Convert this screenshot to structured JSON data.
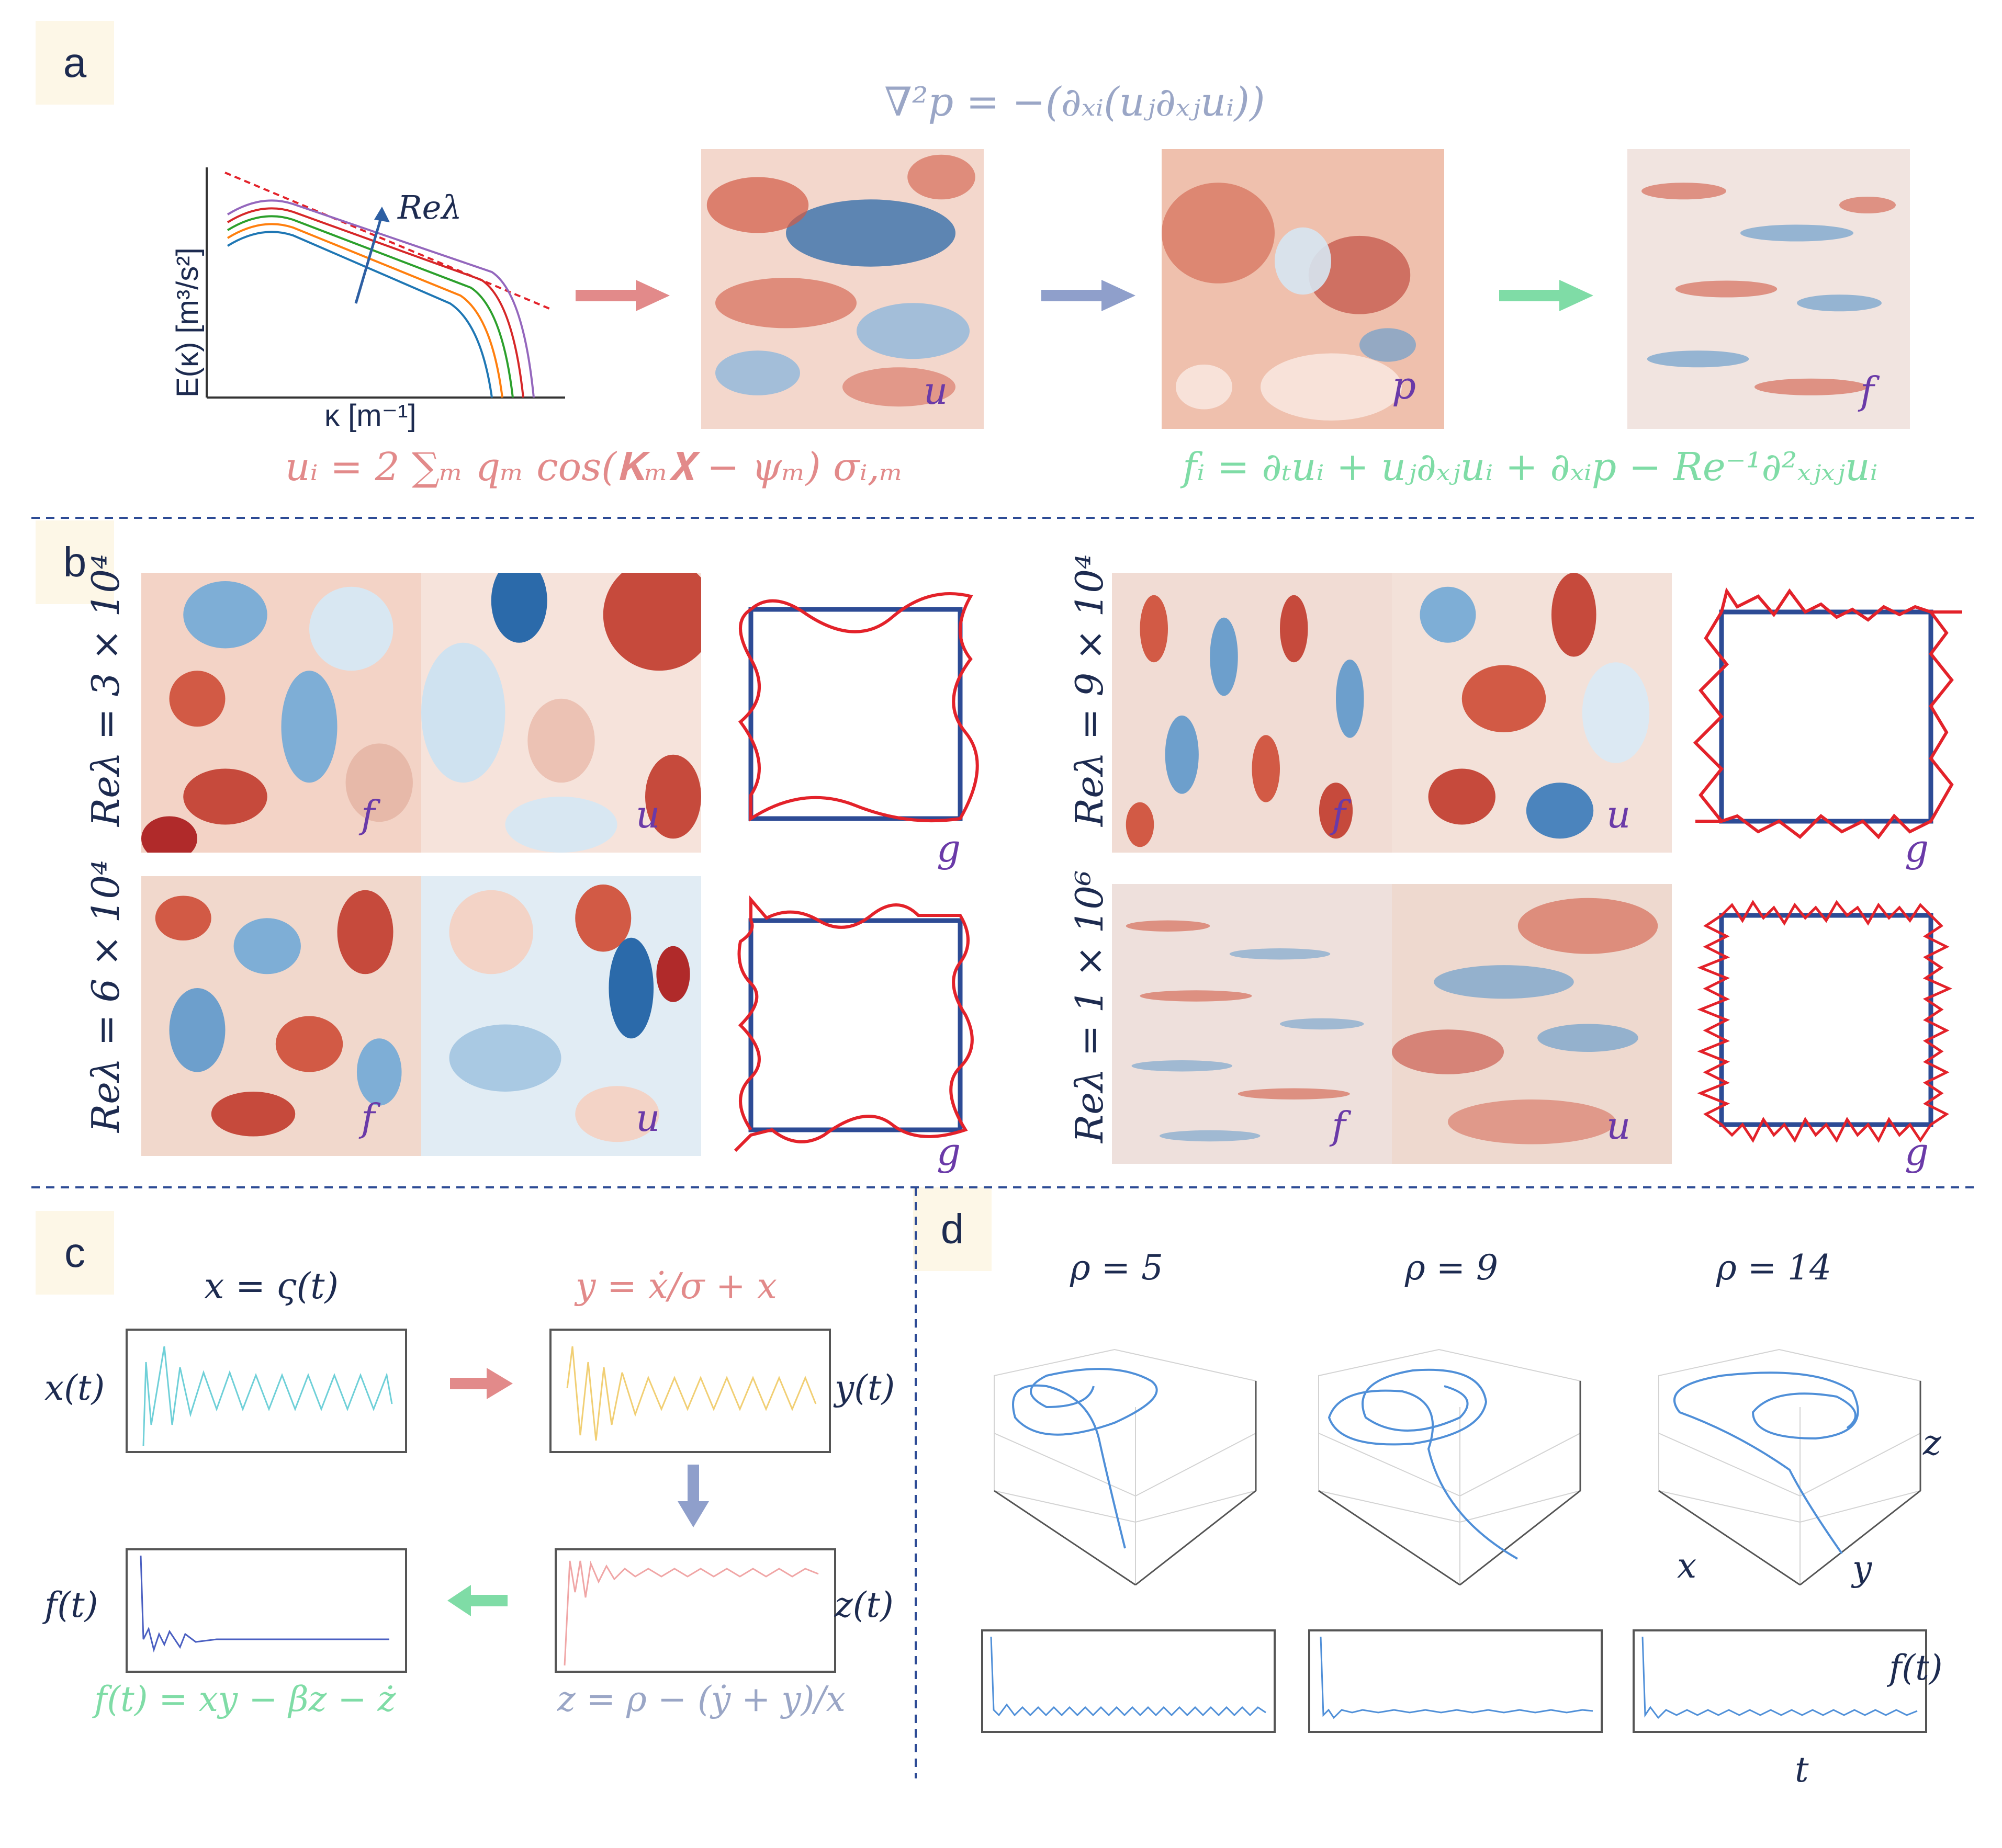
{
  "panels": {
    "a": "a",
    "b": "b",
    "c": "c",
    "d": "d"
  },
  "colors": {
    "red": "#e28a8a",
    "blue": "#8f9fcb",
    "green": "#7fdca6",
    "navy": "#1d2b50",
    "purple": "#6a3aa8",
    "accent_red": "#e3222a",
    "frame_blue": "#2d4b95"
  },
  "panel_a": {
    "poisson_eq": "∇²p = −(∂ₓᵢ(uⱼ∂ₓⱼuᵢ))",
    "velocity_eq": "uᵢ = 2 ∑ₘ qₘ cos(𝐊ₘ𝐗 − ψₘ) σᵢ,ₘ",
    "forcing_eq": "fᵢ = ∂ₜuᵢ + uⱼ∂ₓⱼuᵢ + ∂ₓᵢp − Re⁻¹∂²ₓⱼₓⱼuᵢ",
    "spectrum": {
      "ylabel": "E(κ) [m³/s²]",
      "xlabel": "κ [m⁻¹]",
      "arrow_label": "Reλ",
      "line_colors": [
        "#1f77b4",
        "#ff7f0e",
        "#2ca02c",
        "#d62728",
        "#9467bd"
      ]
    },
    "field_labels": [
      "u",
      "p",
      "f"
    ]
  },
  "panel_b": {
    "cases": [
      {
        "label": "Reλ = 3 × 10⁴",
        "f": "f",
        "u": "u",
        "g": "g"
      },
      {
        "label": "Reλ = 9 × 10⁴",
        "f": "f",
        "u": "u",
        "g": "g"
      },
      {
        "label": "Reλ = 6 × 10⁴",
        "f": "f",
        "u": "u",
        "g": "g"
      },
      {
        "label": "Reλ = 1 × 10⁶",
        "f": "f",
        "u": "u",
        "g": "g"
      }
    ]
  },
  "panel_c": {
    "x_eq": "x = ς(t)",
    "y_eq": "y = ẋ/σ + x",
    "z_eq": "z = ρ − (ẏ + y)/x",
    "f_eq": "f(t) = xy − βz − ż",
    "xt": "x(t)",
    "yt": "y(t)",
    "zt": "z(t)",
    "ft": "f(t)"
  },
  "panel_d": {
    "rhos": [
      "ρ = 5",
      "ρ = 9",
      "ρ = 14"
    ],
    "axis_x": "x",
    "axis_y": "y",
    "axis_z": "z",
    "ft": "f(t)",
    "t": "t"
  }
}
